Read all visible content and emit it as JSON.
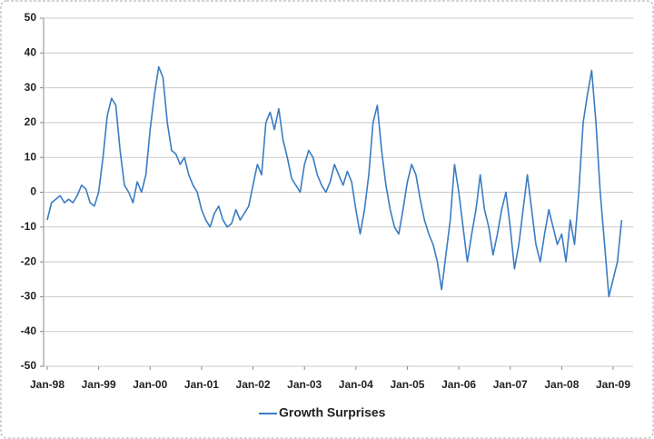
{
  "chart_data": {
    "type": "line",
    "categories": [
      "Jan-98",
      null,
      null,
      null,
      null,
      null,
      null,
      null,
      null,
      null,
      null,
      null,
      "Jan-99",
      null,
      null,
      null,
      null,
      null,
      null,
      null,
      null,
      null,
      null,
      null,
      "Jan-00",
      null,
      null,
      null,
      null,
      null,
      null,
      null,
      null,
      null,
      null,
      null,
      "Jan-01",
      null,
      null,
      null,
      null,
      null,
      null,
      null,
      null,
      null,
      null,
      null,
      "Jan-02",
      null,
      null,
      null,
      null,
      null,
      null,
      null,
      null,
      null,
      null,
      null,
      "Jan-03",
      null,
      null,
      null,
      null,
      null,
      null,
      null,
      null,
      null,
      null,
      null,
      "Jan-04",
      null,
      null,
      null,
      null,
      null,
      null,
      null,
      null,
      null,
      null,
      null,
      "Jan-05",
      null,
      null,
      null,
      null,
      null,
      null,
      null,
      null,
      null,
      null,
      null,
      "Jan-06",
      null,
      null,
      null,
      null,
      null,
      null,
      null,
      null,
      null,
      null,
      null,
      "Jan-07",
      null,
      null,
      null,
      null,
      null,
      null,
      null,
      null,
      null,
      null,
      null,
      "Jan-08",
      null,
      null,
      null,
      null,
      null,
      null,
      null,
      null,
      null,
      null,
      null,
      "Jan-09",
      null,
      null
    ],
    "series": [
      {
        "name": "Growth Surprises",
        "color": "#3a7cc4",
        "values": [
          -8,
          -3,
          -2,
          -1,
          -3,
          -2,
          -3,
          -1,
          2,
          1,
          -3,
          -4,
          0,
          10,
          22,
          27,
          25,
          12,
          2,
          0,
          -3,
          3,
          0,
          5,
          18,
          28,
          36,
          33,
          20,
          12,
          11,
          8,
          10,
          5,
          2,
          0,
          -5,
          -8,
          -10,
          -6,
          -4,
          -8,
          -10,
          -9,
          -5,
          -8,
          -6,
          -4,
          2,
          8,
          5,
          20,
          23,
          18,
          24,
          15,
          10,
          4,
          2,
          0,
          8,
          12,
          10,
          5,
          2,
          0,
          3,
          8,
          5,
          2,
          6,
          3,
          -5,
          -12,
          -5,
          5,
          20,
          25,
          12,
          2,
          -5,
          -10,
          -12,
          -5,
          3,
          8,
          5,
          -2,
          -8,
          -12,
          -15,
          -20,
          -28,
          -18,
          -8,
          8,
          0,
          -10,
          -20,
          -12,
          -5,
          5,
          -5,
          -10,
          -18,
          -12,
          -5,
          0,
          -10,
          -22,
          -15,
          -5,
          5,
          -5,
          -15,
          -20,
          -12,
          -5,
          -10,
          -15,
          -12,
          -20,
          -8,
          -15,
          0,
          20,
          28,
          35,
          20,
          0,
          -15,
          -30,
          -25,
          -20,
          -8
        ]
      }
    ],
    "ylim": [
      -50,
      50
    ],
    "yticks": [
      -50,
      -40,
      -30,
      -20,
      -10,
      0,
      10,
      20,
      30,
      40,
      50
    ],
    "grid": true,
    "legend": "bottom"
  }
}
